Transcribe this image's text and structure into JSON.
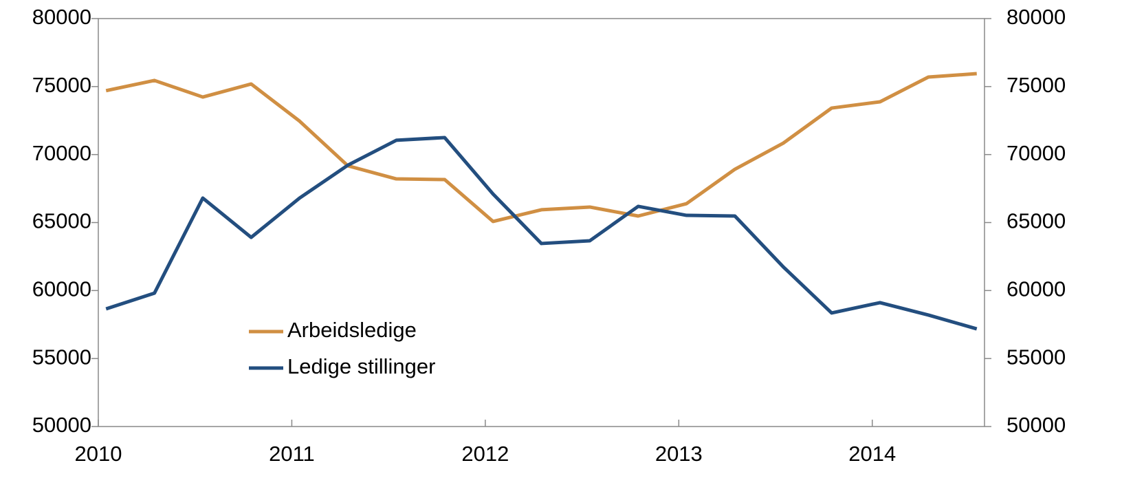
{
  "chart_data": {
    "type": "line",
    "x": [
      2010.04,
      2010.29,
      2010.54,
      2010.79,
      2011.04,
      2011.29,
      2011.54,
      2011.79,
      2012.04,
      2012.29,
      2012.54,
      2012.79,
      2013.04,
      2013.29,
      2013.54,
      2013.79,
      2014.04,
      2014.29,
      2014.54
    ],
    "xlim": [
      2010,
      2014.58
    ],
    "xticks": [
      2010,
      2011,
      2012,
      2013,
      2014
    ],
    "ylim": [
      50000,
      80000
    ],
    "yticks": [
      50000,
      55000,
      60000,
      65000,
      70000,
      75000,
      80000
    ],
    "y2lim": [
      50000,
      80000
    ],
    "y2ticks": [
      50000,
      55000,
      60000,
      65000,
      70000,
      75000,
      80000
    ],
    "legend": "center-left",
    "series": [
      {
        "name": "Arbeidsledige",
        "color": "#d08f43",
        "values": [
          74700,
          75450,
          74230,
          75190,
          72460,
          69170,
          68210,
          68160,
          65080,
          65940,
          66140,
          65480,
          66390,
          68920,
          70840,
          73420,
          73880,
          75700,
          75950
        ]
      },
      {
        "name": "Ledige stillinger",
        "color": "#234e7f",
        "values": [
          58650,
          59810,
          66800,
          63910,
          66800,
          69220,
          71050,
          71250,
          67100,
          63460,
          63660,
          66190,
          65530,
          65480,
          61740,
          58350,
          59110,
          58200,
          57180
        ]
      }
    ]
  }
}
